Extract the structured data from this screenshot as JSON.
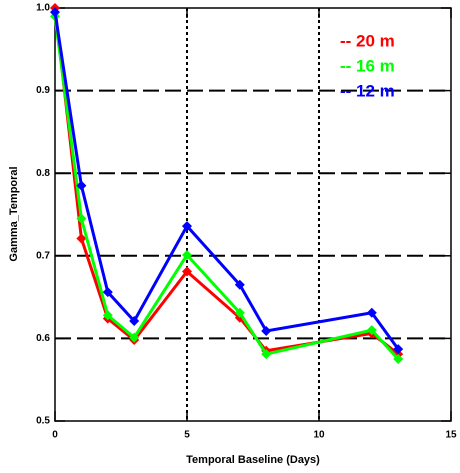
{
  "chart_data": {
    "type": "line",
    "xlabel": "Temporal Baseline (Days)",
    "ylabel": "Gamma_Temporal",
    "x": [
      0,
      1,
      2,
      3,
      5,
      7,
      8,
      12,
      13
    ],
    "series": [
      {
        "name": "-- 20 m",
        "color": "#ff0000",
        "values": [
          1.0,
          0.721,
          0.624,
          0.598,
          0.681,
          0.625,
          0.585,
          0.606,
          0.581
        ]
      },
      {
        "name": "-- 16 m",
        "color": "#00ff00",
        "values": [
          0.99,
          0.745,
          0.628,
          0.601,
          0.701,
          0.631,
          0.581,
          0.61,
          0.575
        ]
      },
      {
        "name": "-- 12 m",
        "color": "#0000ff",
        "values": [
          0.995,
          0.785,
          0.656,
          0.621,
          0.736,
          0.665,
          0.609,
          0.631,
          0.587
        ]
      }
    ],
    "xlim": [
      0,
      15
    ],
    "xticks": [
      0,
      5,
      10,
      15
    ],
    "ylim": [
      0.5,
      1.0
    ],
    "yticks": [
      {
        "value": 0.5,
        "label": "0.5"
      },
      0.6,
      0.7,
      0.8,
      0.9,
      {
        "value": 1.0,
        "label": "1.0"
      }
    ],
    "grid": true,
    "legend": "upper-right"
  }
}
